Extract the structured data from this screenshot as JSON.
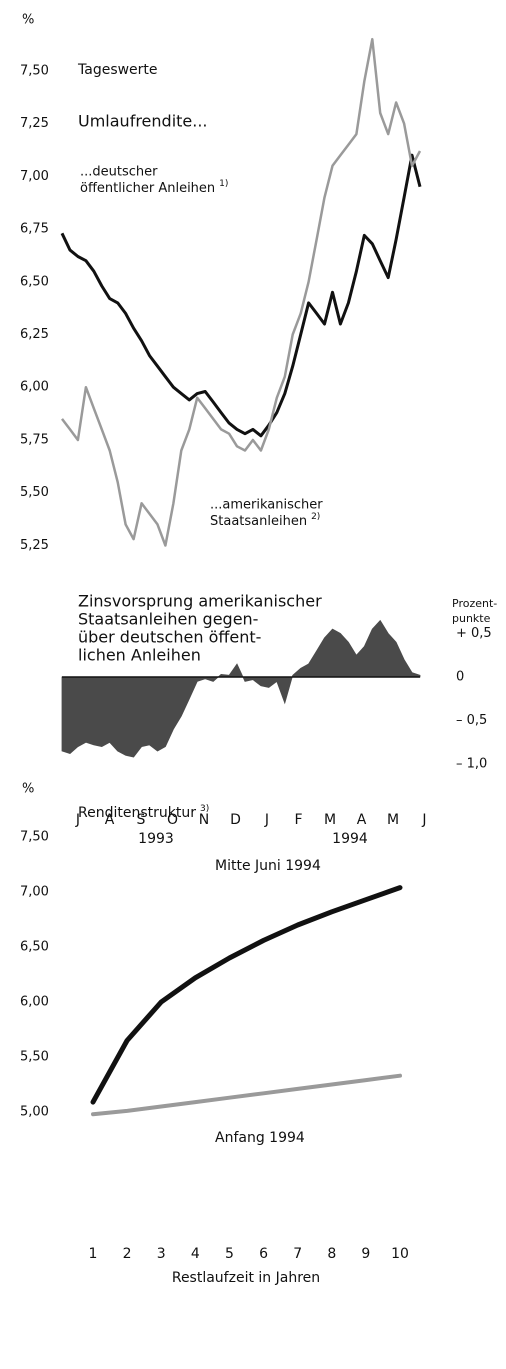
{
  "chart_data": [
    {
      "type": "line",
      "y_unit": "%",
      "subtitle": "Tageswerte",
      "title": "Umlaufrendite...",
      "ylim": [
        5.2,
        7.85
      ],
      "yticks": [
        {
          "value": 5.25,
          "label": "5,25"
        },
        {
          "value": 5.5,
          "label": "5,50"
        },
        {
          "value": 5.75,
          "label": "5,75"
        },
        {
          "value": 6.0,
          "label": "6,00"
        },
        {
          "value": 6.25,
          "label": "6,25"
        },
        {
          "value": 6.5,
          "label": "6,50"
        },
        {
          "value": 6.75,
          "label": "6,75"
        },
        {
          "value": 7.0,
          "label": "7,00"
        },
        {
          "value": 7.25,
          "label": "7,25"
        },
        {
          "value": 7.5,
          "label": "7,50"
        }
      ],
      "series": [
        {
          "name": [
            "...deutscher",
            "öffentlicher Anleihen"
          ],
          "footnote": "1)",
          "color": "#111111",
          "values": [
            6.73,
            6.65,
            6.62,
            6.6,
            6.55,
            6.48,
            6.42,
            6.4,
            6.35,
            6.28,
            6.22,
            6.15,
            6.1,
            6.05,
            6.0,
            5.97,
            5.94,
            5.97,
            5.98,
            5.93,
            5.88,
            5.83,
            5.8,
            5.78,
            5.8,
            5.77,
            5.82,
            5.88,
            5.97,
            6.1,
            6.25,
            6.4,
            6.35,
            6.3,
            6.45,
            6.3,
            6.4,
            6.55,
            6.72,
            6.68,
            6.6,
            6.52,
            6.7,
            6.9,
            7.1,
            6.95
          ]
        },
        {
          "name": [
            "...amerikanischer",
            "Staatsanleihen"
          ],
          "footnote": "2)",
          "color": "#9a9a9a",
          "values": [
            5.85,
            5.8,
            5.75,
            6.0,
            5.9,
            5.8,
            5.7,
            5.55,
            5.35,
            5.28,
            5.45,
            5.4,
            5.35,
            5.25,
            5.45,
            5.7,
            5.8,
            5.95,
            5.9,
            5.85,
            5.8,
            5.78,
            5.72,
            5.7,
            5.75,
            5.7,
            5.8,
            5.95,
            6.05,
            6.25,
            6.35,
            6.5,
            6.7,
            6.9,
            7.05,
            7.1,
            7.15,
            7.2,
            7.45,
            7.65,
            7.3,
            7.2,
            7.35,
            7.25,
            7.05,
            7.12
          ]
        }
      ]
    },
    {
      "type": "area",
      "title_lines": [
        "Zinsvorsprung amerikanischer",
        "Staatsanleihen gegen-",
        "über deutschen öffent-",
        "lichen Anleihen"
      ],
      "y_label_lines": [
        "Prozent-",
        "punkte"
      ],
      "ylim": [
        -1.1,
        0.75
      ],
      "yticks": [
        {
          "value": 0.5,
          "label": "+ 0,5"
        },
        0,
        {
          "value": -0.5,
          "label": "– 0,5"
        },
        {
          "value": -1.0,
          "label": "– 1,0"
        }
      ],
      "color": "#4a4a4a",
      "values": [
        -0.85,
        -0.88,
        -0.8,
        -0.75,
        -0.78,
        -0.8,
        -0.75,
        -0.85,
        -0.9,
        -0.92,
        -0.8,
        -0.78,
        -0.85,
        -0.8,
        -0.6,
        -0.45,
        -0.25,
        -0.05,
        -0.02,
        -0.05,
        0.03,
        0.02,
        0.15,
        -0.05,
        -0.03,
        -0.1,
        -0.12,
        -0.05,
        -0.3,
        0.02,
        0.1,
        0.15,
        0.3,
        0.45,
        0.55,
        0.5,
        0.4,
        0.25,
        0.35,
        0.55,
        0.65,
        0.5,
        0.4,
        0.2,
        0.05,
        0.02
      ],
      "month_labels": [
        "J",
        "A",
        "S",
        "O",
        "N",
        "D",
        "J",
        "F",
        "M",
        "A",
        "M",
        "J"
      ],
      "year_labels": [
        "1993",
        "1994"
      ]
    },
    {
      "type": "line",
      "y_unit": "%",
      "title": "Renditenstruktur",
      "footnote": "3)",
      "x_label": "Restlaufzeit in Jahren",
      "x": [
        1,
        2,
        3,
        4,
        5,
        6,
        7,
        8,
        9,
        10
      ],
      "xlim": [
        1,
        10
      ],
      "xticks": [
        1,
        2,
        3,
        4,
        5,
        6,
        7,
        8,
        9,
        10
      ],
      "ylim": [
        4.9,
        7.6
      ],
      "yticks": [
        {
          "value": 5.0,
          "label": "5,00"
        },
        {
          "value": 5.5,
          "label": "5,50"
        },
        {
          "value": 6.0,
          "label": "6,00"
        },
        {
          "value": 6.5,
          "label": "6,50"
        },
        {
          "value": 7.0,
          "label": "7,00"
        },
        {
          "value": 7.5,
          "label": "7,50"
        }
      ],
      "series": [
        {
          "name": "Mitte Juni 1994",
          "color": "#111111",
          "values": [
            5.09,
            5.65,
            6.0,
            6.22,
            6.4,
            6.56,
            6.7,
            6.82,
            6.93,
            7.04
          ]
        },
        {
          "name": "Anfang 1994",
          "color": "#9a9a9a",
          "values": [
            4.98,
            5.01,
            5.05,
            5.09,
            5.13,
            5.17,
            5.21,
            5.25,
            5.29,
            5.33
          ]
        }
      ]
    }
  ]
}
